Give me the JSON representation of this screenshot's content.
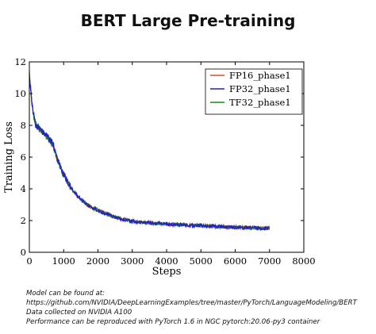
{
  "chart_data": {
    "type": "line",
    "title": "BERT Large Pre-training",
    "xlabel": "Steps",
    "ylabel": "Training Loss",
    "xlim": [
      0,
      8000
    ],
    "ylim": [
      0,
      12
    ],
    "xticks": [
      0,
      1000,
      2000,
      3000,
      4000,
      5000,
      6000,
      7000,
      8000
    ],
    "yticks": [
      0,
      2,
      4,
      6,
      8,
      10,
      12
    ],
    "grid": false,
    "legend_position": "top-right",
    "series": [
      {
        "name": "FP16_phase1",
        "color": "#e8491d"
      },
      {
        "name": "FP32_phase1",
        "color": "#1f1fd6"
      },
      {
        "name": "TF32_phase1",
        "color": "#1a8a1a"
      }
    ],
    "curve": {
      "x": [
        0,
        25,
        50,
        100,
        150,
        200,
        300,
        400,
        500,
        600,
        700,
        750,
        800,
        900,
        1000,
        1200,
        1400,
        1600,
        1800,
        2000,
        2200,
        2400,
        2600,
        2800,
        3000,
        3500,
        4000,
        4500,
        5000,
        5500,
        6000,
        6500,
        7000
      ],
      "y": [
        11.3,
        10.6,
        10.0,
        9.0,
        8.3,
        8.0,
        7.75,
        7.55,
        7.3,
        7.1,
        6.75,
        6.35,
        5.95,
        5.4,
        4.9,
        4.1,
        3.55,
        3.15,
        2.85,
        2.65,
        2.45,
        2.3,
        2.15,
        2.05,
        1.95,
        1.85,
        1.78,
        1.72,
        1.68,
        1.62,
        1.58,
        1.55,
        1.5
      ]
    }
  },
  "notes": {
    "line1": "Model can be found at:",
    "line2": "https://github.com/NVIDIA/DeepLearningExamples/tree/master/PyTorch/LanguageModeling/BERT",
    "line3": "Data collected on NVIDIA A100",
    "line4": "Performance can be reproduced with PyTorch 1.6 in NGC pytorch:20.06-py3 container"
  }
}
